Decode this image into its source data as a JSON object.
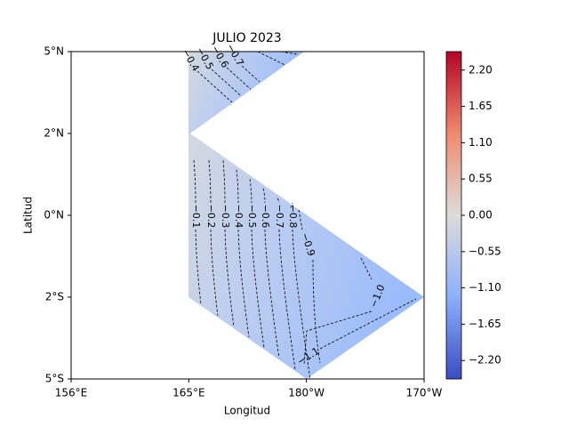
{
  "chart_data": {
    "type": "contour",
    "title": "JULIO 2023",
    "xlabel": "Longitud",
    "ylabel": "Latitud",
    "categories": [
      "156°E",
      "165°E",
      "180°W",
      "170°W"
    ],
    "y_categories": [
      "5°N",
      "2°N",
      "0°N",
      "2°S",
      "5°S"
    ],
    "colormap": "coolwarm",
    "clim": [
      -2.48,
      2.48
    ],
    "cticks": [
      {
        "value": 2.2,
        "label": "2.20"
      },
      {
        "value": 1.65,
        "label": "1.65"
      },
      {
        "value": 1.1,
        "label": "1.10"
      },
      {
        "value": 0.55,
        "label": "0.55"
      },
      {
        "value": 0,
        "label": "0.00"
      },
      {
        "value": -0.55,
        "label": "−0.55"
      },
      {
        "value": -1.1,
        "label": "−1.10"
      },
      {
        "value": -1.65,
        "label": "−1.65"
      },
      {
        "value": -2.2,
        "label": "−2.20"
      }
    ],
    "contour_levels": [
      {
        "value": -0.1,
        "label": "−0.1"
      },
      {
        "value": -0.2,
        "label": "−0.2"
      },
      {
        "value": -0.3,
        "label": "−0.3"
      },
      {
        "value": -0.4,
        "label": "−0.4"
      },
      {
        "value": -0.5,
        "label": "−0.5"
      },
      {
        "value": -0.6,
        "label": "−0.6"
      },
      {
        "value": -0.7,
        "label": "−0.7"
      },
      {
        "value": -0.8,
        "label": "−0.8"
      },
      {
        "value": -0.9,
        "label": "−0.9"
      },
      {
        "value": -1.0,
        "label": "−1.0"
      },
      {
        "value": -1.1,
        "label": "−1.1"
      }
    ]
  }
}
